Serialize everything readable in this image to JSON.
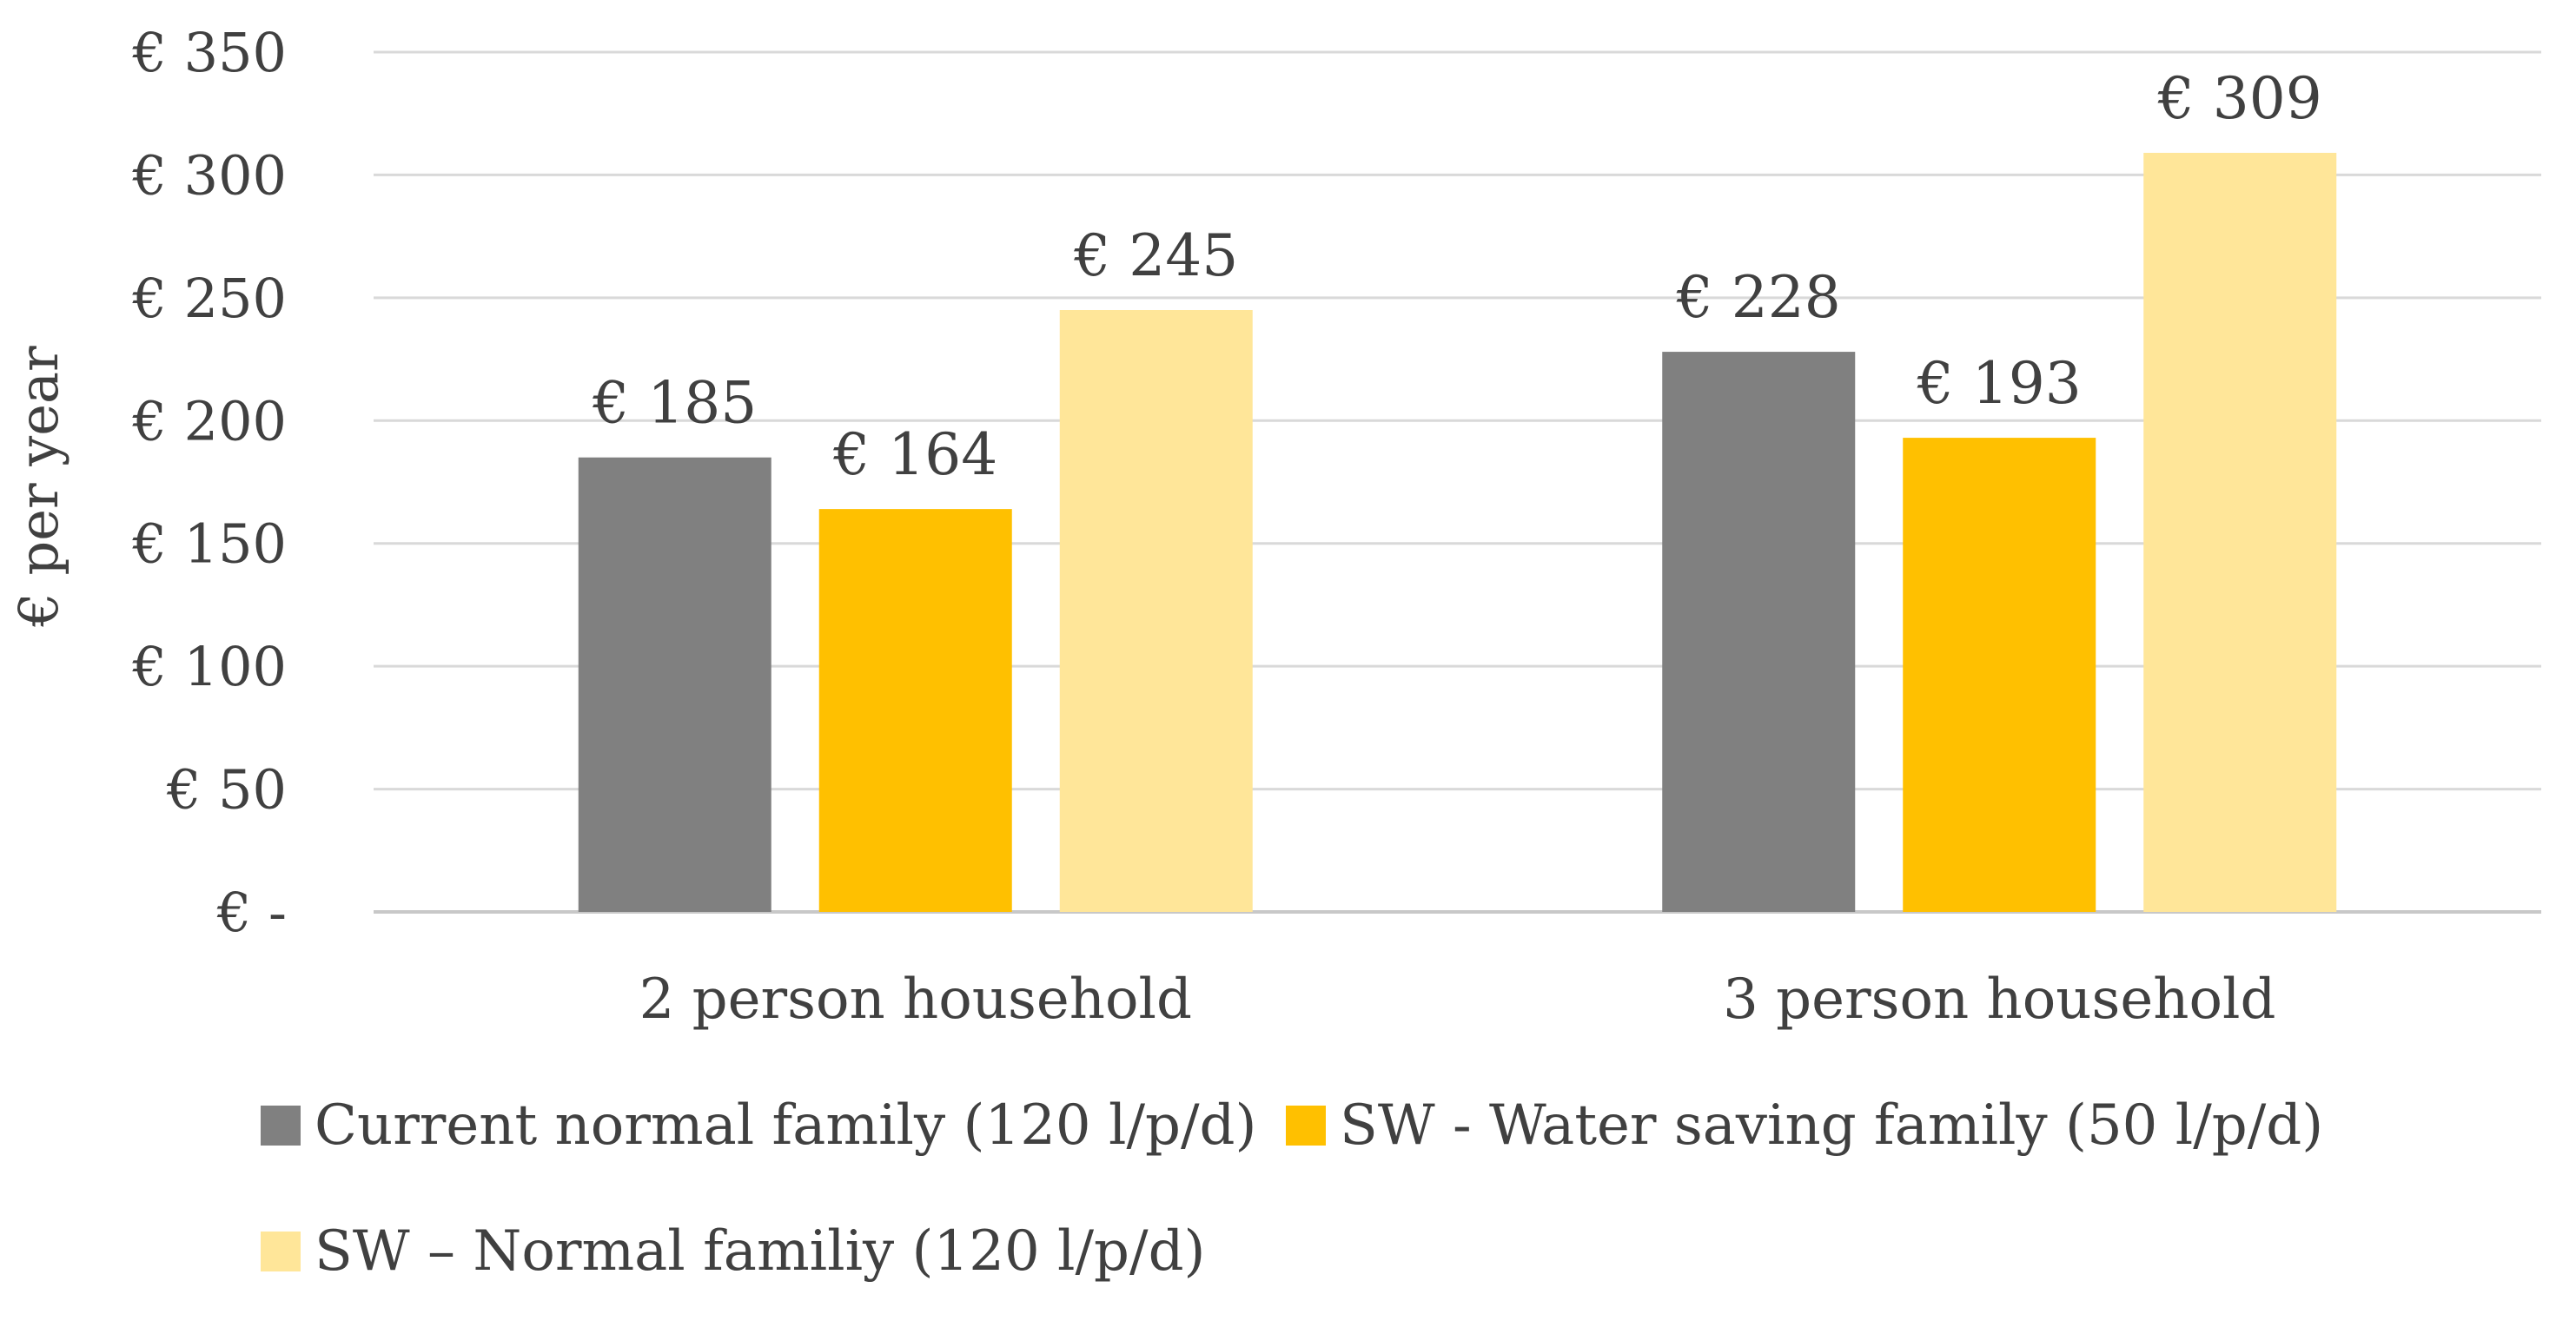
{
  "chart_data": {
    "type": "bar",
    "title": "",
    "xlabel": "",
    "ylabel": "€ per year",
    "ylim": [
      0,
      350
    ],
    "yticks": [
      0,
      50,
      100,
      150,
      200,
      250,
      300,
      350
    ],
    "ytick_labels": [
      "€ -",
      "€ 50",
      "€ 100",
      "€ 150",
      "€ 200",
      "€ 250",
      "€ 300",
      "€ 350"
    ],
    "grid": true,
    "categories": [
      "2 person household",
      "3 person household"
    ],
    "series": [
      {
        "name": "Current normal family (120 l/p/d)",
        "color": "#808080",
        "values": [
          185,
          228
        ],
        "labels": [
          "€ 185",
          "€ 228"
        ]
      },
      {
        "name": "SW - Water saving family (50 l/p/d)",
        "color": "#FFC000",
        "values": [
          164,
          193
        ],
        "labels": [
          "€ 164",
          "€ 193"
        ]
      },
      {
        "name": "SW – Normal familiy (120 l/p/d)",
        "color": "#FFE699",
        "values": [
          245,
          309
        ],
        "labels": [
          "€ 245",
          "€ 309"
        ]
      }
    ],
    "legend_position": "bottom"
  }
}
